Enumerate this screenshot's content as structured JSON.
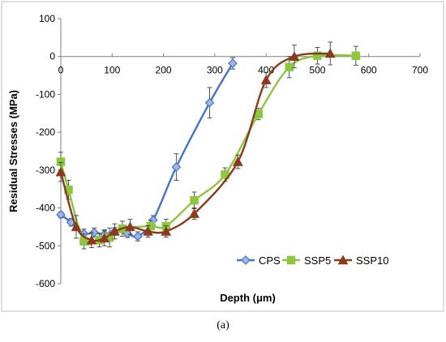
{
  "chart_data": {
    "type": "line",
    "title": "",
    "xlabel": "Depth (μm)",
    "ylabel": "Residual Stresses (MPa)",
    "xlim": [
      0,
      700
    ],
    "ylim": [
      -600,
      100
    ],
    "xticks": [
      0,
      100,
      200,
      300,
      400,
      500,
      600,
      700
    ],
    "yticks": [
      100,
      0,
      -100,
      -200,
      -300,
      -400,
      -500,
      -600
    ],
    "grid": false,
    "legend_position": "bottom-right",
    "series": [
      {
        "name": "CPS",
        "color": "#4472C4",
        "marker": "diamond",
        "points": [
          {
            "x": 0,
            "y": -418,
            "err": 8
          },
          {
            "x": 20,
            "y": -438,
            "err": 10
          },
          {
            "x": 45,
            "y": -468,
            "err": 12
          },
          {
            "x": 65,
            "y": -465,
            "err": 12
          },
          {
            "x": 85,
            "y": -470,
            "err": 12
          },
          {
            "x": 105,
            "y": -462,
            "err": 10
          },
          {
            "x": 130,
            "y": -468,
            "err": 10
          },
          {
            "x": 150,
            "y": -475,
            "err": 12
          },
          {
            "x": 180,
            "y": -432,
            "err": 12
          },
          {
            "x": 225,
            "y": -292,
            "err": 35
          },
          {
            "x": 290,
            "y": -122,
            "err": 40
          },
          {
            "x": 335,
            "y": -18,
            "err": 15
          }
        ]
      },
      {
        "name": "SSP5",
        "color": "#8DC63F",
        "marker": "square",
        "points": [
          {
            "x": 0,
            "y": -278,
            "err": 25
          },
          {
            "x": 15,
            "y": -352,
            "err": 25
          },
          {
            "x": 45,
            "y": -488,
            "err": 20
          },
          {
            "x": 75,
            "y": -485,
            "err": 18
          },
          {
            "x": 95,
            "y": -478,
            "err": 25
          },
          {
            "x": 120,
            "y": -455,
            "err": 20
          },
          {
            "x": 175,
            "y": -448,
            "err": 15
          },
          {
            "x": 205,
            "y": -448,
            "err": 18
          },
          {
            "x": 260,
            "y": -380,
            "err": 22
          },
          {
            "x": 320,
            "y": -312,
            "err": 18
          },
          {
            "x": 385,
            "y": -152,
            "err": 15
          },
          {
            "x": 445,
            "y": -28,
            "err": 28
          },
          {
            "x": 500,
            "y": 2,
            "err": 22
          },
          {
            "x": 575,
            "y": 2,
            "err": 25
          }
        ]
      },
      {
        "name": "SSP10",
        "color": "#8B3A1E",
        "marker": "triangle",
        "points": [
          {
            "x": 0,
            "y": -305,
            "err": 25
          },
          {
            "x": 30,
            "y": -450,
            "err": 30
          },
          {
            "x": 60,
            "y": -485,
            "err": 20
          },
          {
            "x": 85,
            "y": -480,
            "err": 20
          },
          {
            "x": 105,
            "y": -462,
            "err": 20
          },
          {
            "x": 135,
            "y": -450,
            "err": 20
          },
          {
            "x": 170,
            "y": -462,
            "err": 15
          },
          {
            "x": 205,
            "y": -462,
            "err": 15
          },
          {
            "x": 260,
            "y": -415,
            "err": 15
          },
          {
            "x": 345,
            "y": -278,
            "err": 18
          },
          {
            "x": 400,
            "y": -62,
            "err": 20
          },
          {
            "x": 455,
            "y": 0,
            "err": 30
          },
          {
            "x": 525,
            "y": 8,
            "err": 30
          }
        ]
      }
    ]
  },
  "caption": "(a)"
}
